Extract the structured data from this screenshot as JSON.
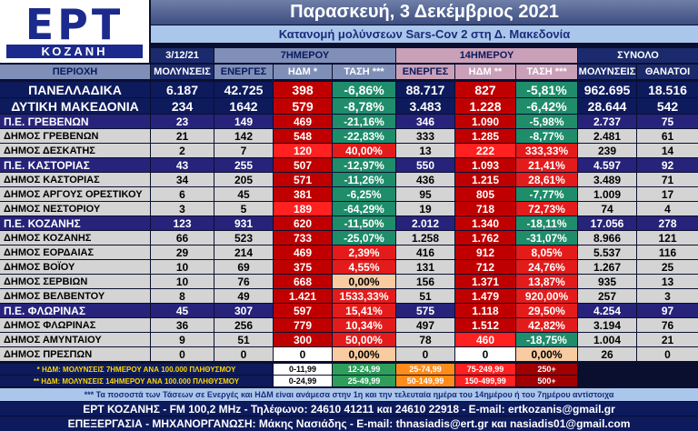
{
  "header": {
    "logo": "ΕΡΤ",
    "logo_sub": "ΚΟΖΑΝΗ",
    "title": "Παρασκευή, 3 Δεκέμβριος 2021",
    "subtitle": "Κατανομή μολύνσεων Sars-Cov 2 στη Δ. Μακεδονία"
  },
  "table": {
    "groups": [
      "3/12/21",
      "7ΗΜΕΡΟΥ",
      "14ΗΜΕΡΟΥ",
      "ΣΥΝΟΛΟ"
    ],
    "columns": [
      "ΠΕΡΙΟΧΗ",
      "ΜΟΛΥΝΣΕΙΣ",
      "ΕΝΕΡΓΕΣ",
      "ΗΔΜ *",
      "ΤΑΣΗ ***",
      "ΕΝΕΡΓΕΣ",
      "ΗΔΜ **",
      "ΤΑΣΗ ***",
      "ΜΟΛΥΝΣΕΙΣ",
      "ΘΑΝΑΤΟΙ"
    ],
    "rows": [
      {
        "cells": [
          "ΠΑΝΕΛΛΑΔΙΚΑ",
          "6.187",
          "42.725",
          "398",
          "-6,86%",
          "88.717",
          "827",
          "-5,81%",
          "962.695",
          "18.516"
        ],
        "fill": "#0d1a5c",
        "text_color": "#ffffff",
        "colors": [
          "#c00000",
          "#1f8c6a",
          "#c00000",
          "#1f8c6a"
        ]
      },
      {
        "cells": [
          "ΔΥΤΙΚΗ ΜΑΚΕΔΟΝΙΑ",
          "234",
          "1642",
          "579",
          "-8,78%",
          "3.483",
          "1.228",
          "-6,42%",
          "28.644",
          "542"
        ],
        "fill": "#0d1a5c",
        "text_color": "#ffffff",
        "colors": [
          "#c00000",
          "#1f8c6a",
          "#c00000",
          "#1f8c6a"
        ]
      },
      {
        "cells": [
          "Π.Ε. ΓΡΕΒΕΝΩΝ",
          "23",
          "149",
          "469",
          "-21,16%",
          "346",
          "1.090",
          "-5,98%",
          "2.737",
          "75"
        ],
        "fill": "#27237a",
        "text_color": "#ffffff",
        "colors": [
          "#c00000",
          "#1f8c6a",
          "#c00000",
          "#1f8c6a"
        ]
      },
      {
        "cells": [
          "ΔΗΜΟΣ ΓΡΕΒΕΝΩΝ",
          "21",
          "142",
          "548",
          "-22,83%",
          "333",
          "1.285",
          "-8,77%",
          "2.481",
          "61"
        ],
        "fill": "#d4d4d4",
        "text_color": "#000000",
        "colors": [
          "#c00000",
          "#1f8c6a",
          "#c00000",
          "#1f8c6a"
        ]
      },
      {
        "cells": [
          "ΔΗΜΟΣ ΔΕΣΚΑΤΗΣ",
          "2",
          "7",
          "120",
          "40,00%",
          "13",
          "222",
          "333,33%",
          "239",
          "14"
        ],
        "fill": "#d4d4d4",
        "text_color": "#000000",
        "colors": [
          "#ff2020",
          "#e41b1b",
          "#ff2020",
          "#e41b1b"
        ]
      },
      {
        "cells": [
          "Π.Ε. ΚΑΣΤΟΡΙΑΣ",
          "43",
          "255",
          "507",
          "-12,97%",
          "550",
          "1.093",
          "21,41%",
          "4.597",
          "92"
        ],
        "fill": "#27237a",
        "text_color": "#ffffff",
        "colors": [
          "#c00000",
          "#1f8c6a",
          "#c00000",
          "#e41b1b"
        ]
      },
      {
        "cells": [
          "ΔΗΜΟΣ ΚΑΣΤΟΡΙΑΣ",
          "34",
          "205",
          "571",
          "-11,26%",
          "436",
          "1.215",
          "28,61%",
          "3.489",
          "71"
        ],
        "fill": "#d4d4d4",
        "text_color": "#000000",
        "colors": [
          "#c00000",
          "#1f8c6a",
          "#c00000",
          "#e41b1b"
        ]
      },
      {
        "cells": [
          "ΔΗΜΟΣ ΑΡΓΟΥΣ ΟΡΕΣΤΙΚΟΥ",
          "6",
          "45",
          "381",
          "-6,25%",
          "95",
          "805",
          "-7,77%",
          "1.009",
          "17"
        ],
        "fill": "#d4d4d4",
        "text_color": "#000000",
        "colors": [
          "#c00000",
          "#1f8c6a",
          "#c00000",
          "#1f8c6a"
        ]
      },
      {
        "cells": [
          "ΔΗΜΟΣ ΝΕΣΤΟΡΙΟΥ",
          "3",
          "5",
          "189",
          "-64,29%",
          "19",
          "718",
          "72,73%",
          "74",
          "4"
        ],
        "fill": "#d4d4d4",
        "text_color": "#000000",
        "colors": [
          "#ff2020",
          "#1f8c6a",
          "#c00000",
          "#e41b1b"
        ]
      },
      {
        "cells": [
          "Π.Ε. ΚΟΖΑΝΗΣ",
          "123",
          "931",
          "620",
          "-11,50%",
          "2.012",
          "1.340",
          "-18,11%",
          "17.056",
          "278"
        ],
        "fill": "#27237a",
        "text_color": "#ffffff",
        "colors": [
          "#c00000",
          "#1f8c6a",
          "#c00000",
          "#1f8c6a"
        ]
      },
      {
        "cells": [
          "ΔΗΜΟΣ ΚΟΖΑΝΗΣ",
          "66",
          "523",
          "733",
          "-25,07%",
          "1.258",
          "1.762",
          "-31,07%",
          "8.966",
          "121"
        ],
        "fill": "#d4d4d4",
        "text_color": "#000000",
        "colors": [
          "#c00000",
          "#1f8c6a",
          "#c00000",
          "#1f8c6a"
        ]
      },
      {
        "cells": [
          "ΔΗΜΟΣ ΕΟΡΔΑΙΑΣ",
          "29",
          "214",
          "469",
          "2,39%",
          "416",
          "912",
          "8,05%",
          "5.537",
          "116"
        ],
        "fill": "#d4d4d4",
        "text_color": "#000000",
        "colors": [
          "#c00000",
          "#e41b1b",
          "#c00000",
          "#e41b1b"
        ]
      },
      {
        "cells": [
          "ΔΗΜΟΣ ΒΟΪΟΥ",
          "10",
          "69",
          "375",
          "4,55%",
          "131",
          "712",
          "24,76%",
          "1.267",
          "25"
        ],
        "fill": "#d4d4d4",
        "text_color": "#000000",
        "colors": [
          "#c00000",
          "#e41b1b",
          "#c00000",
          "#e41b1b"
        ]
      },
      {
        "cells": [
          "ΔΗΜΟΣ ΣΕΡΒΙΩΝ",
          "10",
          "76",
          "668",
          "0,00%",
          "156",
          "1.371",
          "13,87%",
          "935",
          "13"
        ],
        "fill": "#d4d4d4",
        "text_color": "#000000",
        "colors": [
          "#c00000",
          "#f8cba0",
          "#c00000",
          "#e41b1b"
        ]
      },
      {
        "cells": [
          "ΔΗΜΟΣ ΒΕΛΒΕΝΤΟΥ",
          "8",
          "49",
          "1.421",
          "1533,33%",
          "51",
          "1.479",
          "920,00%",
          "257",
          "3"
        ],
        "fill": "#d4d4d4",
        "text_color": "#000000",
        "colors": [
          "#c00000",
          "#e41b1b",
          "#c00000",
          "#e41b1b"
        ]
      },
      {
        "cells": [
          "Π.Ε. ΦΛΩΡΙΝΑΣ",
          "45",
          "307",
          "597",
          "15,41%",
          "575",
          "1.118",
          "29,50%",
          "4.254",
          "97"
        ],
        "fill": "#27237a",
        "text_color": "#ffffff",
        "colors": [
          "#c00000",
          "#e41b1b",
          "#c00000",
          "#e41b1b"
        ]
      },
      {
        "cells": [
          "ΔΗΜΟΣ ΦΛΩΡΙΝΑΣ",
          "36",
          "256",
          "779",
          "10,34%",
          "497",
          "1.512",
          "42,82%",
          "3.194",
          "76"
        ],
        "fill": "#d4d4d4",
        "text_color": "#000000",
        "colors": [
          "#c00000",
          "#e41b1b",
          "#c00000",
          "#e41b1b"
        ]
      },
      {
        "cells": [
          "ΔΗΜΟΣ ΑΜΥΝΤΑΙΟΥ",
          "9",
          "51",
          "300",
          "50,00%",
          "78",
          "460",
          "-18,75%",
          "1.004",
          "21"
        ],
        "fill": "#d4d4d4",
        "text_color": "#000000",
        "colors": [
          "#c00000",
          "#e41b1b",
          "#ff2020",
          "#1f8c6a"
        ]
      },
      {
        "cells": [
          "ΔΗΜΟΣ ΠΡΕΣΠΩΝ",
          "0",
          "0",
          "0",
          "0,00%",
          "0",
          "0",
          "0,00%",
          "26",
          "0"
        ],
        "fill": "#d4d4d4",
        "text_color": "#000000",
        "colors": [
          "#ffffff",
          "#f8cba0",
          "#ffffff",
          "#f8cba0"
        ]
      }
    ]
  },
  "legend": [
    {
      "label": "* ΗΔΜ: ΜΟΛΥΝΣΕΙΣ 7ΗΜΕΡΟΥ ΑΝΑ 100.000 ΠΛΗΘΥΣΜΟΥ",
      "ranges": [
        {
          "text": "0-11,99",
          "color": "#ffffff"
        },
        {
          "text": "12-24,99",
          "color": "#2e9e5a"
        },
        {
          "text": "25-74,99",
          "color": "#ff8c1a"
        },
        {
          "text": "75-249,99",
          "color": "#ff2020"
        },
        {
          "text": "250+",
          "color": "#a00000"
        }
      ]
    },
    {
      "label": "** ΗΔΜ: ΜΟΛΥΝΣΕΙΣ 14ΗΜΕΡΟΥ ΑΝΑ 100.000 ΠΛΗΘΥΣΜΟΥ",
      "ranges": [
        {
          "text": "0-24,99",
          "color": "#ffffff"
        },
        {
          "text": "25-49,99",
          "color": "#2e9e5a"
        },
        {
          "text": "50-149,99",
          "color": "#ff8c1a"
        },
        {
          "text": "150-499,99",
          "color": "#ff2020"
        },
        {
          "text": "500+",
          "color": "#a00000"
        }
      ]
    }
  ],
  "footer": {
    "note": "*** Τα ποσοστά των Τάσεων σε Ενεργές και ΗΔΜ είναι ανάμεσα στην 1η και την τελευταία ημέρα του 14ημέρου ή του 7ημέρου αντίστοιχα",
    "contact": "ΕΡΤ ΚΟΖΑΝΗΣ - FM 100,2 MHz - Τηλέφωνο: 24610 41211 και 24610 22918 - E-mail: ertkozanis@gmail.gr",
    "credits": "ΕΠΕΞΕΡΓΑΣΙΑ - ΜΗΧΑΝΟΡΓΑΝΩΣΗ: Μάκης Νασιάδης - E-mail: thnasiadis@ert.gr και nasiadis01@gmail.com"
  }
}
